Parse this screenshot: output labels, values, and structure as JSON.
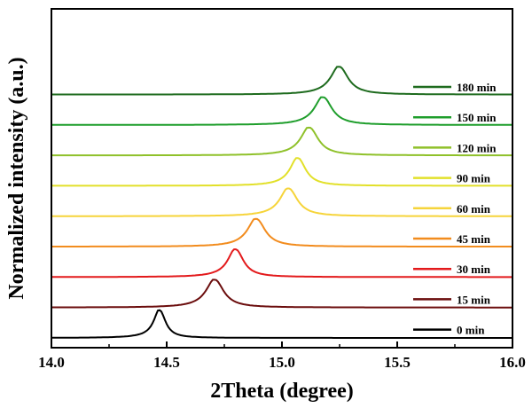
{
  "chart_data": {
    "type": "line",
    "xlabel": "2Theta (degree)",
    "ylabel": "Normalized intensity (a.u.)",
    "xlim": [
      14.0,
      16.0
    ],
    "x_ticks": [
      "14.0",
      "14.5",
      "15.0",
      "15.5",
      "16.0"
    ],
    "y_ticks_labeled": false,
    "offset_traces": true,
    "legend_position": "right",
    "series": [
      {
        "name": "0 min",
        "color": "#000000",
        "peak_x": 14.47,
        "peak_height": 0.27,
        "fwhm": 0.03,
        "baseline": 0.0
      },
      {
        "name": "15 min",
        "color": "#6b0d0d",
        "peak_x": 14.71,
        "peak_height": 0.27,
        "fwhm": 0.045,
        "baseline": 1.0
      },
      {
        "name": "30 min",
        "color": "#e31a1c",
        "peak_x": 14.8,
        "peak_height": 0.27,
        "fwhm": 0.04,
        "baseline": 2.0
      },
      {
        "name": "45 min",
        "color": "#f28c1e",
        "peak_x": 14.89,
        "peak_height": 0.27,
        "fwhm": 0.045,
        "baseline": 3.0
      },
      {
        "name": "60 min",
        "color": "#f6d43a",
        "peak_x": 15.03,
        "peak_height": 0.27,
        "fwhm": 0.045,
        "baseline": 4.0
      },
      {
        "name": "90 min",
        "color": "#e2e02a",
        "peak_x": 15.07,
        "peak_height": 0.27,
        "fwhm": 0.04,
        "baseline": 5.0
      },
      {
        "name": "120 min",
        "color": "#8fc12a",
        "peak_x": 15.12,
        "peak_height": 0.27,
        "fwhm": 0.045,
        "baseline": 6.0
      },
      {
        "name": "150 min",
        "color": "#1f9e2c",
        "peak_x": 15.18,
        "peak_height": 0.27,
        "fwhm": 0.045,
        "baseline": 7.0
      },
      {
        "name": "180 min",
        "color": "#1e6b1e",
        "peak_x": 15.25,
        "peak_height": 0.27,
        "fwhm": 0.045,
        "baseline": 8.0
      }
    ]
  }
}
